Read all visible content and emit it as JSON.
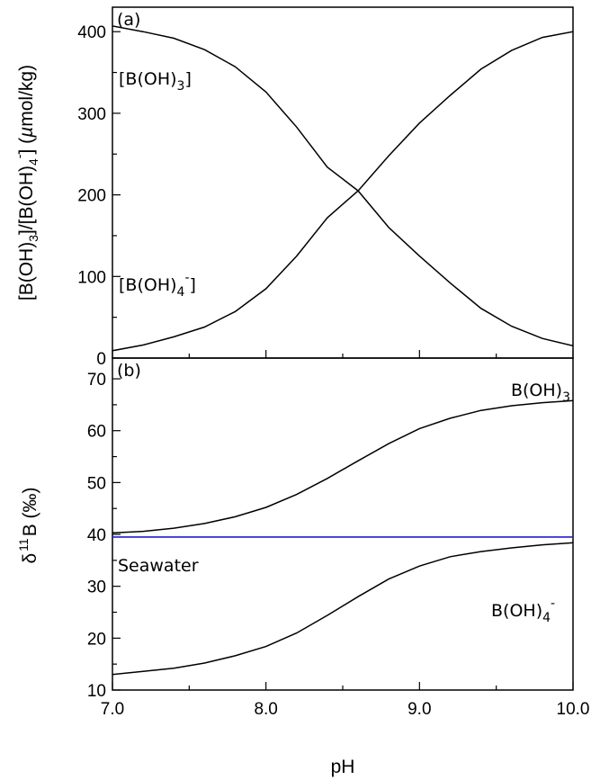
{
  "chart_data": [
    {
      "type": "line",
      "panel_label": "(a)",
      "ylabel": "[B(OH)3]/[B(OH)4-] (µmol/kg)",
      "ylabel_parts": {
        "p1": "[B(OH)",
        "s1": "3",
        "p2": "]/[B(OH)",
        "s2": "4",
        "sup": "-",
        "p3": "] (",
        "mu": "µ",
        "p4": "mol/kg)"
      },
      "ylim": [
        0,
        430
      ],
      "yticks": [
        0,
        100,
        200,
        300,
        400
      ],
      "xlim": [
        7.0,
        10.0
      ],
      "annotations": [
        {
          "id": "boh3",
          "base": "[B(OH)",
          "sub": "3",
          "sup": "",
          "close": "]"
        },
        {
          "id": "boh4",
          "base": "[B(OH)",
          "sub": "4",
          "sup": "-",
          "close": "]"
        }
      ],
      "series": [
        {
          "x": [
            7.0,
            7.2,
            7.4,
            7.6,
            7.8,
            8.0,
            8.2,
            8.4,
            8.6,
            8.8,
            9.0,
            9.2,
            9.4,
            9.6,
            9.8,
            10.0
          ],
          "values": [
            407,
            400,
            392,
            378,
            357,
            326,
            283,
            234,
            205,
            160,
            125,
            92,
            61,
            39,
            24,
            15
          ]
        },
        {
          "x": [
            7.0,
            7.2,
            7.4,
            7.6,
            7.8,
            8.0,
            8.2,
            8.4,
            8.6,
            8.8,
            9.0,
            9.2,
            9.4,
            9.6,
            9.8,
            10.0
          ],
          "values": [
            9,
            16,
            26,
            38,
            57,
            85,
            125,
            172,
            205,
            248,
            288,
            322,
            354,
            377,
            393,
            400
          ]
        }
      ]
    },
    {
      "type": "line",
      "panel_label": "(b)",
      "ylabel": "δ11B (‰)",
      "ylabel_parts": {
        "delta": "δ",
        "sup": "11",
        "rest": "B (‰)"
      },
      "ylim": [
        10,
        74
      ],
      "yticks": [
        10,
        20,
        30,
        40,
        50,
        60,
        70
      ],
      "xlim": [
        7.0,
        10.0
      ],
      "xticks": [
        7.0,
        8.0,
        9.0,
        10.0
      ],
      "xtick_labels": [
        "7.0",
        "8.0",
        "9.0",
        "10.0"
      ],
      "xlabel": "pH",
      "seawater_label": "Seawater",
      "seawater_value": 39.5,
      "seawater_color": "#1f1fd0",
      "annotations": [
        {
          "id": "boh3",
          "base": "B(OH)",
          "sub": "3",
          "sup": ""
        },
        {
          "id": "boh4",
          "base": "B(OH)",
          "sub": "4",
          "sup": "-"
        }
      ],
      "series": [
        {
          "x": [
            7.0,
            7.2,
            7.4,
            7.6,
            7.8,
            8.0,
            8.2,
            8.4,
            8.6,
            8.8,
            9.0,
            9.2,
            9.4,
            9.6,
            9.8,
            10.0
          ],
          "values": [
            40.3,
            40.6,
            41.2,
            42.1,
            43.4,
            45.2,
            47.7,
            50.8,
            54.2,
            57.5,
            60.4,
            62.4,
            63.9,
            64.8,
            65.4,
            65.8
          ]
        },
        {
          "x": [
            7.0,
            7.2,
            7.4,
            7.6,
            7.8,
            8.0,
            8.2,
            8.4,
            8.6,
            8.8,
            9.0,
            9.2,
            9.4,
            9.6,
            9.8,
            10.0
          ],
          "values": [
            13.0,
            13.6,
            14.2,
            15.2,
            16.6,
            18.4,
            21.0,
            24.4,
            28.0,
            31.4,
            33.9,
            35.7,
            36.7,
            37.4,
            38.0,
            38.4
          ]
        }
      ]
    }
  ]
}
